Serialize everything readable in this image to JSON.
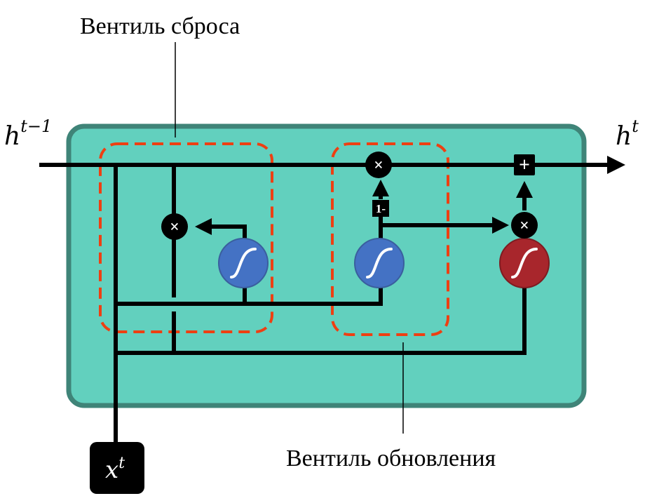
{
  "labels": {
    "reset_gate": "Вентиль сброса",
    "update_gate": "Вентиль обновления",
    "input_h": "h",
    "input_h_sup": "t−1",
    "output_h": "h",
    "output_h_sup": "t",
    "input_x": "x",
    "input_x_sup": "t",
    "one_minus": "1-"
  },
  "operators": {
    "multiply": "×",
    "add": "+"
  },
  "colors": {
    "cell_fill": "#62d0be",
    "cell_stroke": "#3f8478",
    "gate_dash": "#ee3f12",
    "sigmoid_blue": "#4472c4",
    "tanh_red": "#a8262c",
    "line": "#000000"
  },
  "icons": [
    "sigmoid-icon",
    "tanh-icon",
    "multiply-icon",
    "add-icon",
    "arrow-icon"
  ]
}
